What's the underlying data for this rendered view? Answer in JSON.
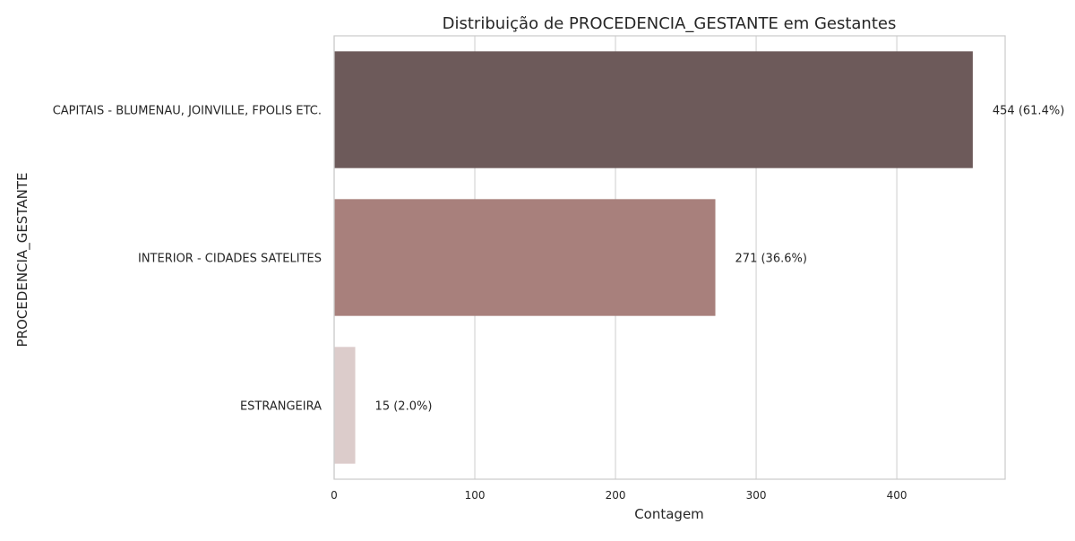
{
  "chart_data": {
    "type": "bar",
    "orientation": "horizontal",
    "title": "Distribuição de PROCEDENCIA_GESTANTE em Gestantes",
    "xlabel": "Contagem",
    "ylabel": "PROCEDENCIA_GESTANTE",
    "xlim": [
      0,
      477
    ],
    "xticks": [
      0,
      100,
      200,
      300,
      400
    ],
    "grid": true,
    "categories": [
      "CAPITAIS - BLUMENAU, JOINVILLE, FPOLIS ETC.",
      "INTERIOR - CIDADES SATELITES",
      "ESTRANGEIRA"
    ],
    "values": [
      454,
      271,
      15
    ],
    "data_labels": [
      "454 (61.4%)",
      "271 (36.6%)",
      "15 (2.0%)"
    ],
    "colors": [
      "#6d5a5a",
      "#a8807c",
      "#dccccb"
    ]
  }
}
